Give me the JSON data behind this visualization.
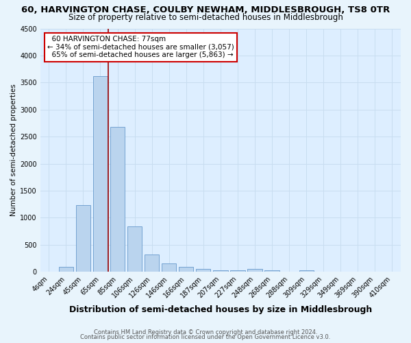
{
  "title1": "60, HARVINGTON CHASE, COULBY NEWHAM, MIDDLESBROUGH, TS8 0TR",
  "title2": "Size of property relative to semi-detached houses in Middlesbrough",
  "xlabel": "Distribution of semi-detached houses by size in Middlesbrough",
  "ylabel": "Number of semi-detached properties",
  "footnote1": "Contains HM Land Registry data © Crown copyright and database right 2024.",
  "footnote2": "Contains public sector information licensed under the Open Government Licence v3.0.",
  "bar_labels": [
    "4sqm",
    "24sqm",
    "45sqm",
    "65sqm",
    "85sqm",
    "106sqm",
    "126sqm",
    "146sqm",
    "166sqm",
    "187sqm",
    "207sqm",
    "227sqm",
    "248sqm",
    "268sqm",
    "288sqm",
    "309sqm",
    "329sqm",
    "349sqm",
    "369sqm",
    "390sqm",
    "410sqm"
  ],
  "bar_values": [
    0,
    90,
    1240,
    3620,
    2680,
    840,
    315,
    155,
    90,
    55,
    35,
    35,
    55,
    35,
    0,
    30,
    0,
    0,
    0,
    0,
    0
  ],
  "bar_color": "#bad4ee",
  "bar_edge_color": "#6699cc",
  "fig_bg_color": "#e8f4fc",
  "plot_bg_color": "#ddeeff",
  "grid_color": "#c8ddf0",
  "ylim": [
    0,
    4500
  ],
  "yticks": [
    0,
    500,
    1000,
    1500,
    2000,
    2500,
    3000,
    3500,
    4000,
    4500
  ],
  "property_label": "60 HARVINGTON CHASE: 77sqm",
  "pct_smaller": 34,
  "pct_larger": 65,
  "n_smaller": 3057,
  "n_larger": 5863,
  "vline_x_index": 3.45,
  "annotation_box_color": "#ffffff",
  "annotation_box_edge": "#cc0000",
  "title1_fontsize": 9.5,
  "title2_fontsize": 8.5,
  "xlabel_fontsize": 9,
  "ylabel_fontsize": 7.5,
  "tick_fontsize": 7,
  "annotation_fontsize": 7.5,
  "footnote_fontsize": 6
}
